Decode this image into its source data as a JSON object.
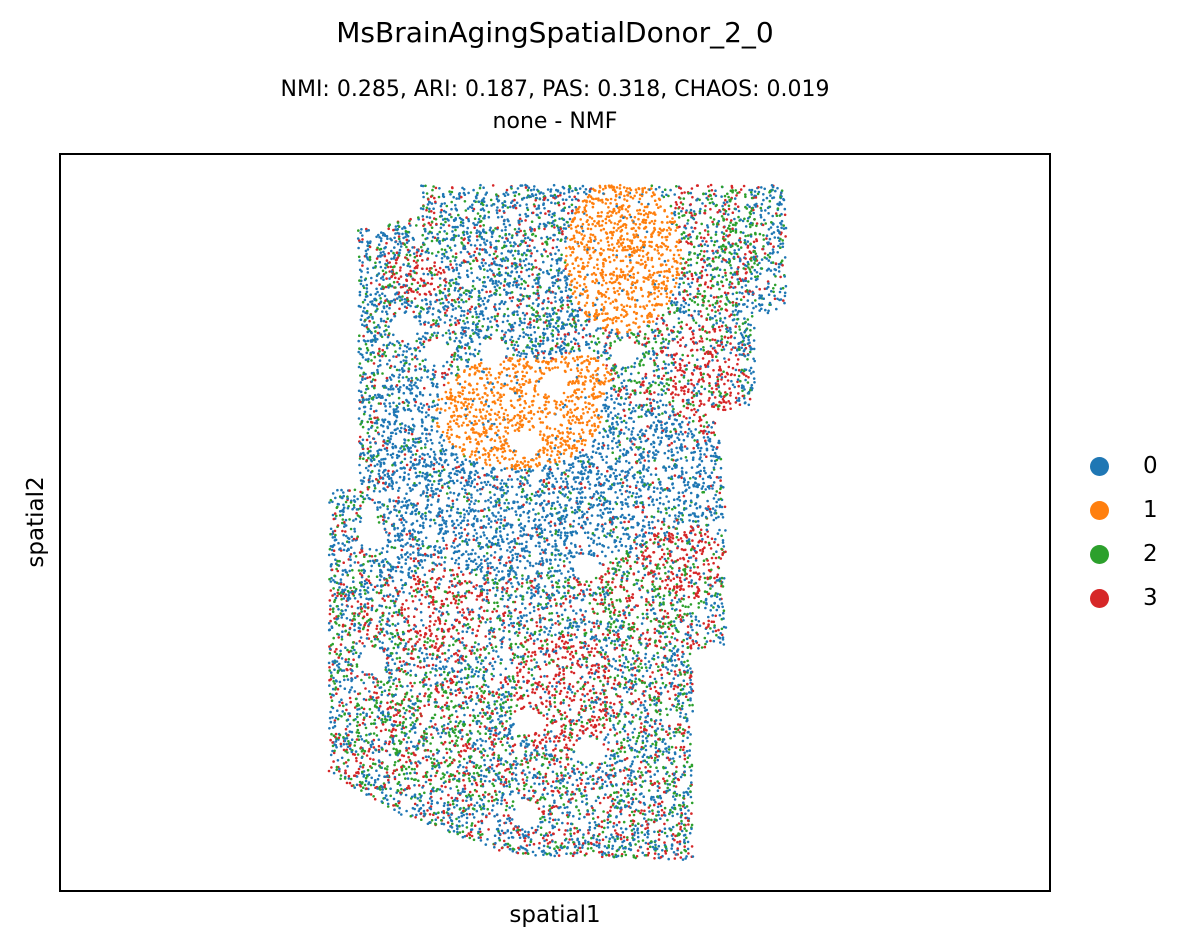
{
  "chart_data": {
    "type": "scatter",
    "title": "MsBrainAgingSpatialDonor_2_0",
    "subtitle_line1": "NMI: 0.285,  ARI: 0.187,  PAS: 0.318,  CHAOS: 0.019",
    "subtitle_line2": "none - NMF",
    "xlabel": "spatial1",
    "ylabel": "spatial2",
    "xticks": [],
    "yticks": [],
    "legend_position": "right",
    "series": [
      {
        "name": "0",
        "color": "#1f77b4"
      },
      {
        "name": "1",
        "color": "#ff7f0e"
      },
      {
        "name": "2",
        "color": "#2ca02c"
      },
      {
        "name": "3",
        "color": "#d62728"
      }
    ]
  }
}
